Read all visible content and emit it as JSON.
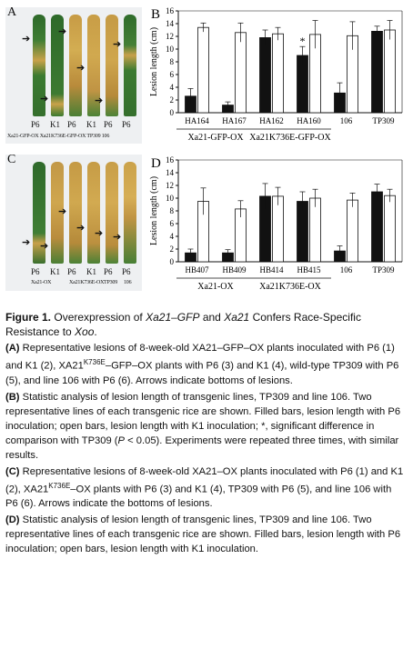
{
  "panelA": {
    "tag": "A",
    "leaf_labels": [
      "P6",
      "K1",
      "P6",
      "K1",
      "P6",
      "P6"
    ],
    "caption": "Xa21-GFP-OX  Xa21K736E-GFP-OX TP309 106"
  },
  "panelC": {
    "tag": "C",
    "leaf_labels": [
      "P6",
      "K1",
      "P6",
      "K1",
      "P6",
      "P6"
    ],
    "groups": [
      "Xa21-OX",
      "Xa21K736E-OX",
      "TP309",
      "106"
    ]
  },
  "chart_data": [
    {
      "type": "bar",
      "panel": "B",
      "ylabel": "Lesion length (cm)",
      "ylim": [
        0,
        16
      ],
      "yticks": [
        0,
        2,
        4,
        6,
        8,
        10,
        12,
        14,
        16
      ],
      "categories": [
        "HA164",
        "HA167",
        "HA162",
        "HA160",
        "106",
        "TP309"
      ],
      "groups": [
        "Xa21-GFP-OX",
        "Xa21K736E-GFP-OX"
      ],
      "series": [
        {
          "color": "#111111",
          "values": [
            2.6,
            1.2,
            11.8,
            9.0,
            3.1,
            12.8
          ],
          "errors": [
            1.2,
            0.5,
            1.2,
            1.4,
            1.6,
            0.8
          ]
        },
        {
          "color": "#ffffff",
          "values": [
            13.4,
            12.6,
            12.4,
            12.3,
            12.1,
            13.0
          ],
          "errors": [
            0.7,
            1.5,
            1.0,
            2.2,
            2.2,
            1.5
          ]
        }
      ],
      "annotation": "*"
    },
    {
      "type": "bar",
      "panel": "D",
      "ylabel": "Lesion length (cm)",
      "ylim": [
        0,
        16
      ],
      "yticks": [
        0,
        2,
        4,
        6,
        8,
        10,
        12,
        14,
        16
      ],
      "categories": [
        "HB407",
        "HB409",
        "HB414",
        "HB415",
        "106",
        "TP309"
      ],
      "groups": [
        "Xa21-OX",
        "Xa21K736E-OX"
      ],
      "series": [
        {
          "color": "#111111",
          "values": [
            1.4,
            1.4,
            10.3,
            9.5,
            1.7,
            11.0
          ],
          "errors": [
            0.6,
            0.5,
            2.0,
            1.5,
            0.8,
            1.2
          ]
        },
        {
          "color": "#ffffff",
          "values": [
            9.5,
            8.3,
            10.3,
            10.0,
            9.7,
            10.4
          ],
          "errors": [
            2.1,
            1.3,
            1.4,
            1.4,
            1.1,
            1.0
          ]
        }
      ]
    }
  ],
  "caption": {
    "fig_label": "Figure 1.",
    "fig_title_1": "Overexpression of",
    "fig_title_gene1": "Xa21–GFP",
    "fig_title_2": "and",
    "fig_title_gene2": "Xa21",
    "fig_title_3": "Confers Race-Specific Resistance to",
    "fig_title_pathogen": "Xoo",
    "fig_title_end": ".",
    "A_label": "(A)",
    "A_text_1": "Representative lesions of 8-week-old XA21–GFP–OX plants inoculated with P6 (1) and K1 (2), XA21",
    "A_sup": "K736E",
    "A_text_2": "–GFP–OX plants with P6 (3) and K1 (4), wild-type TP309 with P6 (5), and line 106 with P6 (6). Arrows indicate bottoms of lesions.",
    "B_label": "(B)",
    "B_text_1": "Statistic analysis of lesion length of transgenic lines, TP309 and line 106. Two representative lines of each transgenic rice are shown. Filled bars, lesion length with P6 inoculation; open bars, lesion length with K1 inoculation; *, significant difference in comparison with TP309 (",
    "B_p": "P",
    "B_text_2": " < 0.05). Experiments were repeated three times, with similar results.",
    "C_label": "(C)",
    "C_text_1": "Representative lesions of 8-week-old XA21–OX plants inoculated with P6 (1) and K1 (2), XA21",
    "C_sup": "K736E",
    "C_text_2": "–OX plants with P6 (3) and K1 (4), TP309 with P6 (5), and line 106 with P6 (6). Arrows indicate the bottoms of lesions.",
    "D_label": "(D)",
    "D_text": "Statistic analysis of lesion length of transgenic lines, TP309 and line 106. Two representative lines of each transgenic rice are shown. Filled bars, lesion length with P6 inoculation; open bars, lesion length with K1 inoculation."
  }
}
